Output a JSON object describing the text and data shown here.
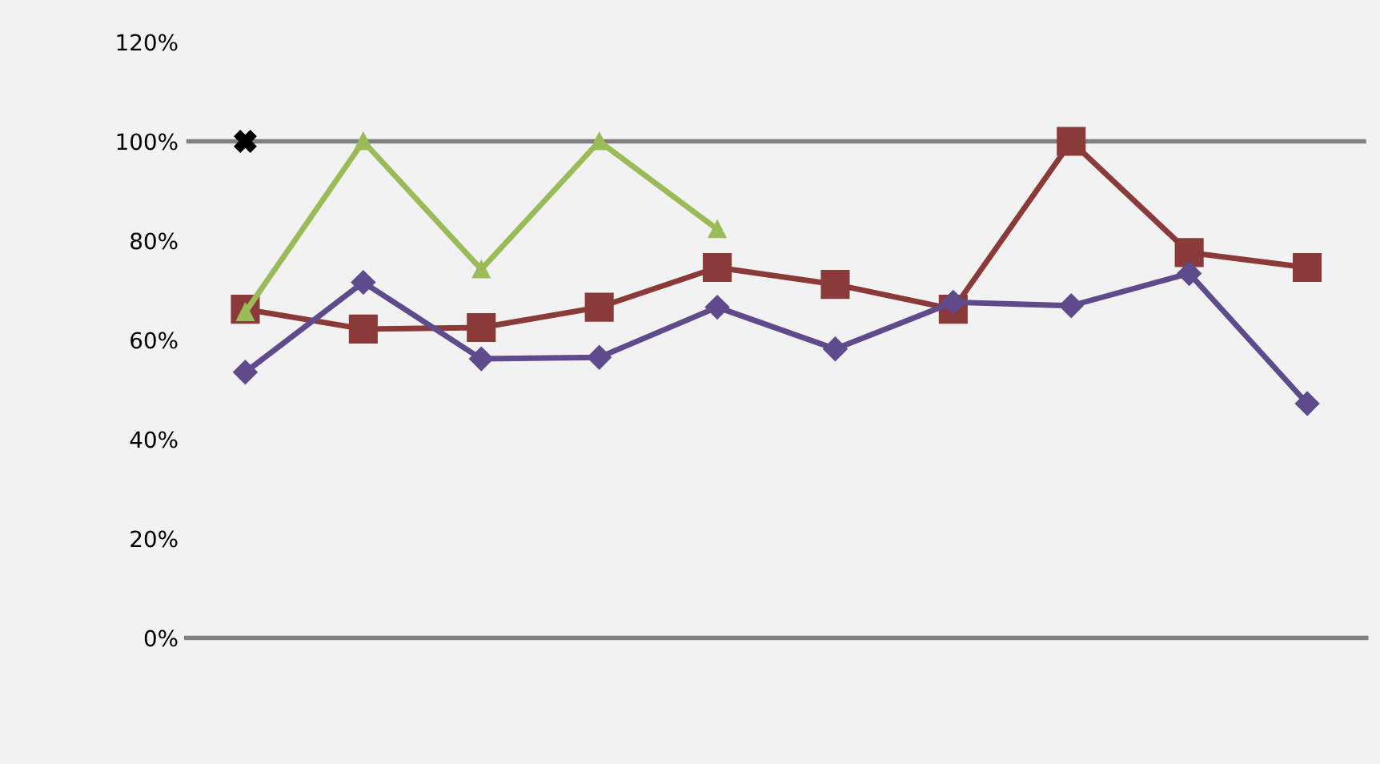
{
  "chart_data": {
    "type": "line",
    "categories": [
      null,
      null,
      null,
      null,
      null,
      null,
      null,
      null,
      null,
      null
    ],
    "series": [
      {
        "color": "#5f4b8b",
        "marker": "diamond",
        "values": [
          53.5,
          71.6,
          56.2,
          56.5,
          66.6,
          58.2,
          67.6,
          66.9,
          73.4,
          47.2
        ]
      },
      {
        "color": "#8b3a3a",
        "marker": "square",
        "values": [
          66.2,
          62.2,
          62.5,
          66.6,
          74.6,
          71.2,
          66.2,
          100,
          77.6,
          74.6
        ]
      },
      {
        "color": "#9bbb59",
        "marker": "triangle",
        "values": [
          65.6,
          100,
          74.2,
          100,
          82.3,
          null,
          null,
          null,
          null,
          null
        ]
      },
      {
        "color": "#000000",
        "marker": "cross",
        "values": [
          100,
          null,
          null,
          null,
          null,
          null,
          null,
          null,
          null,
          null
        ]
      }
    ],
    "ylim": [
      0,
      120
    ],
    "yticks": [
      {
        "value": 0,
        "label": "0%"
      },
      {
        "value": 20,
        "label": "20%"
      },
      {
        "value": 40,
        "label": "40%"
      },
      {
        "value": 60,
        "label": "60%"
      },
      {
        "value": 80,
        "label": "80%"
      },
      {
        "value": 100,
        "label": "100%"
      },
      {
        "value": 120,
        "label": "120%"
      }
    ],
    "ref_lines": [
      {
        "axis": "y",
        "value": 100,
        "color": "#808080"
      }
    ],
    "grid": false
  }
}
